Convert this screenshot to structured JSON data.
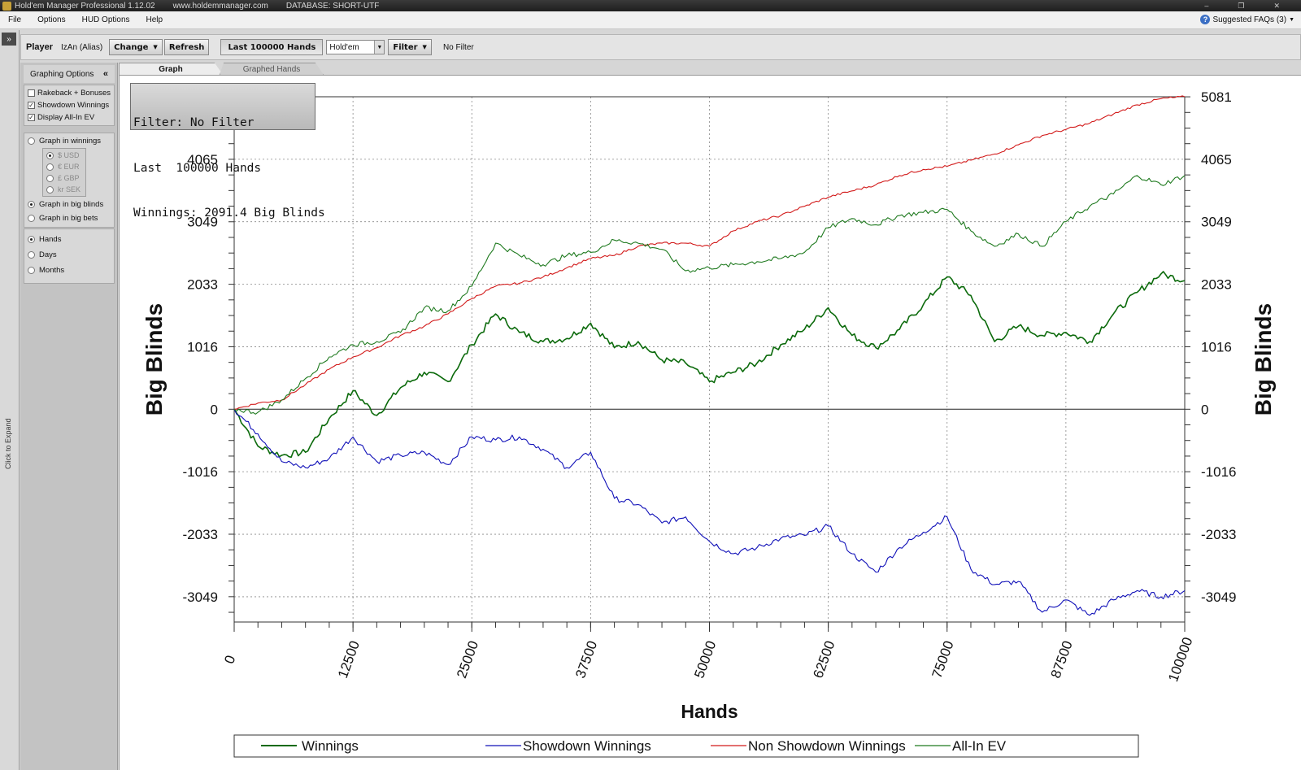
{
  "titlebar": {
    "app_title": "Hold'em Manager Professional 1.12.02",
    "website": "www.holdemmanager.com",
    "database": "DATABASE: SHORT-UTF"
  },
  "menubar": {
    "items": [
      "File",
      "Options",
      "HUD Options",
      "Help"
    ],
    "faq_label": "Suggested FAQs (3)"
  },
  "left_strip": {
    "expand_glyph": "»",
    "expand_label": "Click to Expand"
  },
  "toolbar": {
    "player_label": "Player",
    "player_name": "IzAn (Alias)",
    "change_label": "Change",
    "refresh_label": "Refresh",
    "hands_label": "Last 100000 Hands",
    "game_select": "Hold'em",
    "filter_label": "Filter",
    "filter_value": "No Filter"
  },
  "options_panel": {
    "header": "Graphing Options",
    "collapse_glyph": "«",
    "checkboxes": [
      {
        "label": "Rakeback + Bonuses",
        "checked": false
      },
      {
        "label": "Showdown Winnings",
        "checked": true
      },
      {
        "label": "Display All-In EV",
        "checked": true
      }
    ],
    "graph_in_winnings": "Graph in winnings",
    "currencies": [
      "$ USD",
      "€ EUR",
      "£ GBP",
      "kr SEK"
    ],
    "graph_in_big_blinds": "Graph in big blinds",
    "graph_in_big_bets": "Graph in big bets",
    "x_units": [
      "Hands",
      "Days",
      "Months"
    ]
  },
  "tabs": {
    "graph": "Graph",
    "graphed_hands": "Graphed Hands"
  },
  "info_box": {
    "filter_line": "Filter: No Filter",
    "hands_line": "Last  100000 Hands",
    "winnings_line": "Winnings: 2091.4 Big Blinds"
  },
  "chart_data": {
    "type": "line",
    "xlabel": "Hands",
    "ylabel": "Big Blinds",
    "xlim": [
      0,
      100000
    ],
    "ylim": [
      -3460,
      5081
    ],
    "x_ticks": [
      0,
      12500,
      25000,
      37500,
      50000,
      62500,
      75000,
      87500,
      100000
    ],
    "y_ticks": [
      -3049,
      -2033,
      -1016,
      0,
      1016,
      2033,
      3049,
      4065,
      5081
    ],
    "grid": true,
    "legend_position": "bottom",
    "colors": {
      "winnings": "#0b6a0b",
      "showdown": "#1010b8",
      "non_showdown": "#d21a1a",
      "all_in_ev": "#1f7a1f"
    },
    "series": [
      {
        "name": "Winnings",
        "x": [
          0,
          2500,
          5000,
          7500,
          10000,
          12500,
          15000,
          17500,
          20000,
          22500,
          25000,
          27500,
          30000,
          32500,
          35000,
          37500,
          40000,
          42500,
          45000,
          47500,
          50000,
          52500,
          55000,
          57500,
          60000,
          62500,
          65000,
          67500,
          70000,
          72500,
          75000,
          77500,
          80000,
          82500,
          85000,
          87500,
          90000,
          92500,
          95000,
          97500,
          100000
        ],
        "y": [
          0,
          -600,
          -750,
          -700,
          -150,
          300,
          -100,
          350,
          600,
          450,
          1050,
          1550,
          1250,
          1100,
          1150,
          1400,
          1000,
          1100,
          800,
          750,
          450,
          600,
          750,
          1050,
          1300,
          1650,
          1200,
          1000,
          1300,
          1700,
          2150,
          1850,
          1100,
          1350,
          1200,
          1250,
          1100,
          1550,
          1900,
          2200,
          2091
        ]
      },
      {
        "name": "Showdown Winnings",
        "x": [
          0,
          2500,
          5000,
          7500,
          10000,
          12500,
          15000,
          17500,
          20000,
          22500,
          25000,
          27500,
          30000,
          32500,
          35000,
          37500,
          40000,
          42500,
          45000,
          47500,
          50000,
          52500,
          55000,
          57500,
          60000,
          62500,
          65000,
          67500,
          70000,
          72500,
          75000,
          77500,
          80000,
          82500,
          85000,
          87500,
          90000,
          92500,
          95000,
          97500,
          100000
        ],
        "y": [
          0,
          -400,
          -850,
          -950,
          -800,
          -450,
          -850,
          -750,
          -700,
          -900,
          -450,
          -500,
          -450,
          -650,
          -950,
          -700,
          -1450,
          -1550,
          -1850,
          -1750,
          -2150,
          -2350,
          -2250,
          -2100,
          -2050,
          -1900,
          -2350,
          -2650,
          -2250,
          -2000,
          -1750,
          -2600,
          -2850,
          -2800,
          -3300,
          -3100,
          -3350,
          -3100,
          -2950,
          -3050,
          -2950
        ]
      },
      {
        "name": "Non Showdown Winnings",
        "x": [
          0,
          2500,
          5000,
          7500,
          10000,
          12500,
          15000,
          17500,
          20000,
          22500,
          25000,
          27500,
          30000,
          32500,
          35000,
          37500,
          40000,
          42500,
          45000,
          47500,
          50000,
          52500,
          55000,
          57500,
          60000,
          62500,
          65000,
          67500,
          70000,
          72500,
          75000,
          77500,
          80000,
          82500,
          85000,
          87500,
          90000,
          92500,
          95000,
          97500,
          100000
        ],
        "y": [
          0,
          100,
          150,
          400,
          650,
          850,
          1000,
          1200,
          1350,
          1550,
          1800,
          2000,
          2050,
          2150,
          2300,
          2450,
          2500,
          2650,
          2700,
          2700,
          2650,
          2900,
          3050,
          3150,
          3300,
          3450,
          3550,
          3650,
          3800,
          3900,
          3950,
          4050,
          4150,
          4300,
          4450,
          4550,
          4650,
          4800,
          4950,
          5050,
          5081
        ]
      },
      {
        "name": "All-In EV",
        "x": [
          0,
          2500,
          5000,
          7500,
          10000,
          12500,
          15000,
          17500,
          20000,
          22500,
          25000,
          27500,
          30000,
          32500,
          35000,
          37500,
          40000,
          42500,
          45000,
          47500,
          50000,
          52500,
          55000,
          57500,
          60000,
          62500,
          65000,
          67500,
          70000,
          72500,
          75000,
          77500,
          80000,
          82500,
          85000,
          87500,
          90000,
          92500,
          95000,
          97500,
          100000
        ],
        "y": [
          0,
          -50,
          150,
          500,
          850,
          1050,
          1100,
          1250,
          1650,
          1600,
          2000,
          2700,
          2500,
          2350,
          2500,
          2550,
          2750,
          2700,
          2600,
          2250,
          2300,
          2350,
          2400,
          2450,
          2550,
          2950,
          3100,
          3000,
          3150,
          3200,
          3250,
          2900,
          2650,
          2850,
          2650,
          3050,
          3300,
          3500,
          3800,
          3650,
          3800
        ]
      }
    ]
  }
}
